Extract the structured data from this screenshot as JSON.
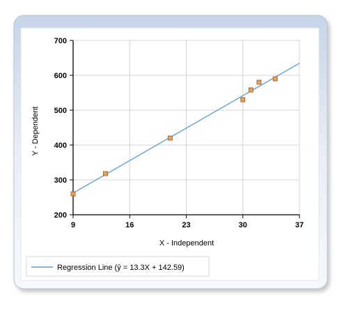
{
  "chart_data": {
    "type": "scatter",
    "title": "",
    "xlabel": "X - Independent",
    "ylabel": "Y - Dependent",
    "xlim": [
      9,
      37
    ],
    "ylim": [
      200,
      700
    ],
    "x_ticks": [
      "9",
      "16",
      "23",
      "30",
      "37"
    ],
    "y_ticks": [
      "200",
      "300",
      "400",
      "500",
      "600",
      "700"
    ],
    "grid": true,
    "series": [
      {
        "x": [
          9,
          13,
          21,
          30,
          31,
          32,
          34
        ],
        "y": [
          260,
          318,
          420,
          530,
          558,
          580,
          590
        ],
        "color": "#e8a25a"
      }
    ],
    "regression": {
      "slope": 13.3,
      "intercept": 142.59,
      "color": "#5b9bd5"
    },
    "legend": {
      "label": "Regression Line (ŷ = 13.3X + 142.59)",
      "position": "bottom-left"
    },
    "colors": {
      "panel_frame": "#c9d6e6",
      "panel_inner": "#ffffff",
      "grid": "#d4d4d4",
      "axis": "#000000"
    }
  }
}
